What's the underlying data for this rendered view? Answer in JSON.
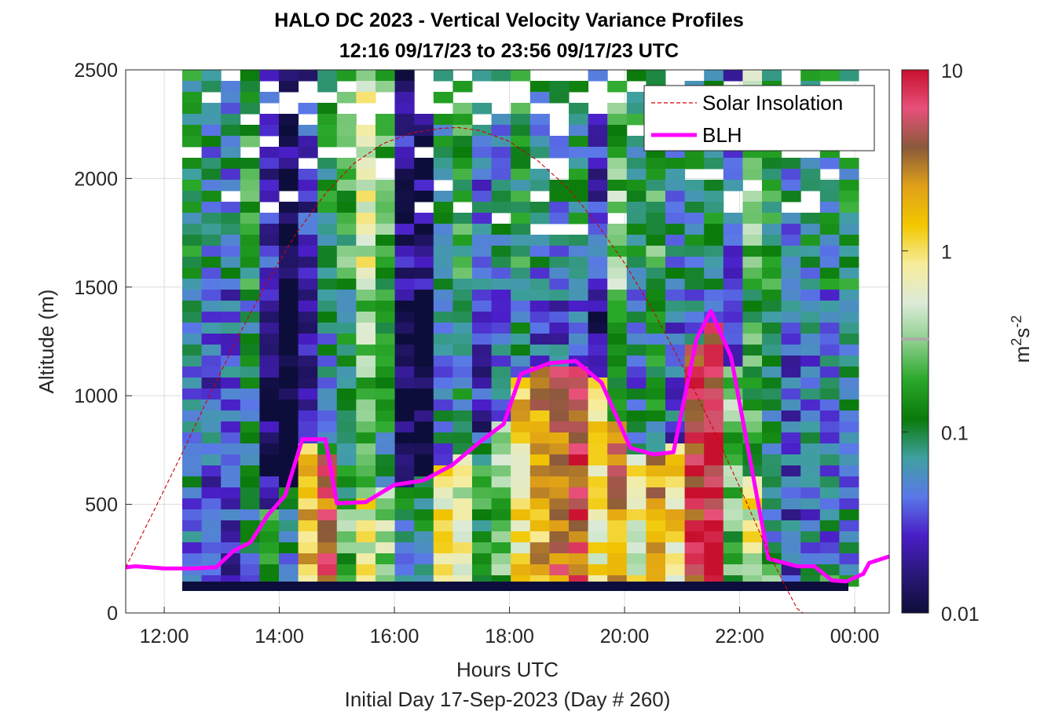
{
  "chart_data": {
    "type": "heatmap",
    "title_line1": "HALO DC 2023 - Vertical Velocity Variance Profiles",
    "title_line2": "12:16 09/17/23 to 23:56 09/17/23  UTC",
    "xlabel": "Hours UTC",
    "footer": "Initial Day 17-Sep-2023 (Day # 260)",
    "ylabel": "Altitude (m)",
    "colorbar_label_base": "m",
    "colorbar_label_sup1": "2",
    "colorbar_label_mid": "s",
    "colorbar_label_sup2": "-2",
    "xlim": [
      11.33,
      24.6
    ],
    "ylim": [
      0,
      2500
    ],
    "x_ticks": [
      {
        "v": 12,
        "label": "12:00"
      },
      {
        "v": 14,
        "label": "14:00"
      },
      {
        "v": 16,
        "label": "16:00"
      },
      {
        "v": 18,
        "label": "18:00"
      },
      {
        "v": 20,
        "label": "20:00"
      },
      {
        "v": 22,
        "label": "22:00"
      },
      {
        "v": 24,
        "label": "00:00"
      }
    ],
    "y_ticks": [
      {
        "v": 0,
        "label": "0"
      },
      {
        "v": 500,
        "label": "500"
      },
      {
        "v": 1000,
        "label": "1000"
      },
      {
        "v": 1500,
        "label": "1500"
      },
      {
        "v": 2000,
        "label": "2000"
      },
      {
        "v": 2500,
        "label": "2500"
      }
    ],
    "colorbar": {
      "scale": "log",
      "range": [
        0.01,
        10
      ],
      "ticks": [
        {
          "v": 0.01,
          "label": "0.01"
        },
        {
          "v": 0.1,
          "label": "0.1"
        },
        {
          "v": 1,
          "label": "1"
        },
        {
          "v": 10,
          "label": "10"
        }
      ],
      "stops": [
        "#0d0d3b",
        "#2a1878",
        "#4a1ec8",
        "#5a78e8",
        "#3fa0a0",
        "#0a7a0a",
        "#2aa82a",
        "#8ccf8c",
        "#dcebd8",
        "#f7ec9a",
        "#f2c800",
        "#e0a018",
        "#8a5a3a",
        "#e8507a",
        "#c8102e"
      ]
    },
    "legend": {
      "position": "top-right",
      "entries": [
        {
          "label": "Solar Insolation",
          "style": "dashed",
          "color": "#d00000"
        },
        {
          "label": "BLH",
          "style": "solid",
          "color": "#ff00ff"
        }
      ]
    },
    "series": [
      {
        "name": "BLH",
        "x": [
          11.33,
          11.5,
          12.0,
          12.5,
          12.9,
          13.2,
          13.5,
          13.8,
          14.1,
          14.4,
          14.8,
          15.0,
          15.5,
          16.0,
          16.5,
          17.0,
          17.5,
          17.9,
          18.2,
          18.4,
          18.7,
          19.15,
          19.6,
          20.1,
          20.5,
          20.85,
          21.25,
          21.5,
          21.85,
          22.5,
          23.0,
          23.3,
          23.6,
          23.85,
          24.15,
          24.25,
          24.6
        ],
        "y": [
          210,
          215,
          205,
          205,
          210,
          285,
          325,
          450,
          540,
          800,
          800,
          505,
          510,
          590,
          610,
          680,
          790,
          870,
          1100,
          1120,
          1150,
          1160,
          1060,
          760,
          730,
          740,
          1260,
          1390,
          1180,
          250,
          215,
          215,
          150,
          145,
          180,
          230,
          260
        ]
      },
      {
        "name": "Solar Insolation",
        "x": [
          11.33,
          11.8,
          12.3,
          12.8,
          13.3,
          13.8,
          14.3,
          14.8,
          15.3,
          15.8,
          16.3,
          16.8,
          17.1,
          17.5,
          18.0,
          18.5,
          19.0,
          19.5,
          20.0,
          20.5,
          21.0,
          21.5,
          22.0,
          22.5,
          22.8,
          23.0,
          23.1,
          23.3,
          24.0,
          24.6
        ],
        "y": [
          210,
          460,
          730,
          1010,
          1280,
          1530,
          1750,
          1930,
          2070,
          2160,
          2210,
          2230,
          2235,
          2220,
          2170,
          2080,
          1960,
          1800,
          1610,
          1390,
          1140,
          870,
          580,
          280,
          120,
          20,
          0,
          0,
          0,
          0
        ]
      }
    ]
  }
}
